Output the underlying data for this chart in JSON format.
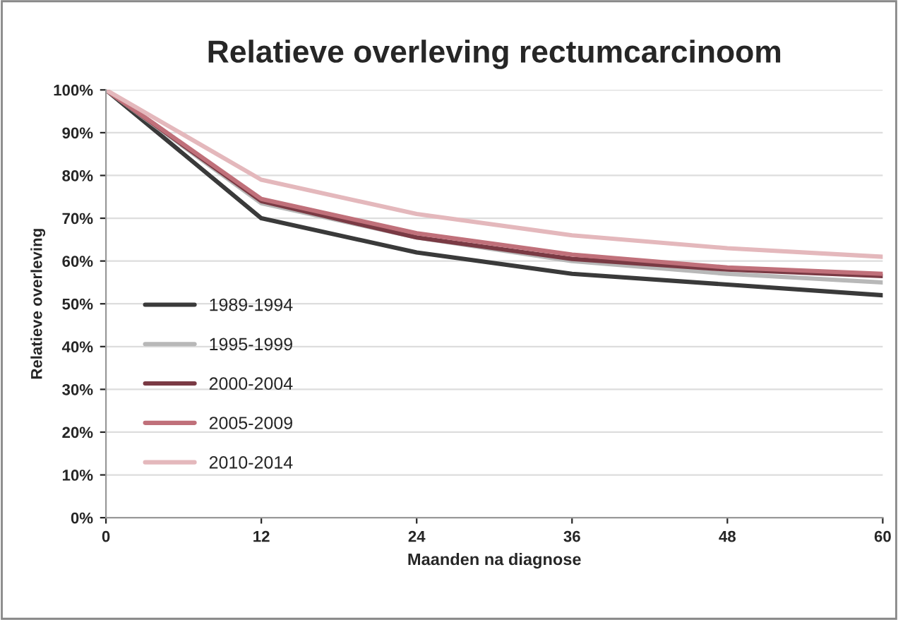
{
  "chart_data": {
    "type": "line",
    "title": "Relatieve overleving rectumcarcinoom",
    "xlabel": "Maanden na diagnose",
    "ylabel": "Relatieve overleving",
    "x": [
      0,
      12,
      24,
      36,
      48,
      60
    ],
    "series": [
      {
        "name": "1989-1994",
        "color": "#3a3a3a",
        "values": [
          100,
          70,
          62,
          57,
          54.5,
          52
        ]
      },
      {
        "name": "1995-1999",
        "color": "#b8b8b8",
        "values": [
          100,
          73.5,
          65.5,
          60,
          57,
          55
        ]
      },
      {
        "name": "2000-2004",
        "color": "#7a3a44",
        "values": [
          100,
          74,
          65.5,
          60.5,
          58,
          56.5
        ]
      },
      {
        "name": "2005-2009",
        "color": "#c0707a",
        "values": [
          100,
          74.5,
          66.5,
          61.5,
          58.5,
          57
        ]
      },
      {
        "name": "2010-2014",
        "color": "#e4b8bc",
        "values": [
          100,
          79,
          71,
          66,
          63,
          61
        ]
      }
    ],
    "xlim": [
      0,
      60
    ],
    "xticks": [
      0,
      12,
      24,
      36,
      48,
      60
    ],
    "ylim": [
      0,
      100
    ],
    "yticks": [
      {
        "value": 0,
        "label": "0%"
      },
      {
        "value": 10,
        "label": "10%"
      },
      {
        "value": 20,
        "label": "20%"
      },
      {
        "value": 30,
        "label": "30%"
      },
      {
        "value": 40,
        "label": "40%"
      },
      {
        "value": 50,
        "label": "50%"
      },
      {
        "value": 60,
        "label": "60%"
      },
      {
        "value": 70,
        "label": "70%"
      },
      {
        "value": 80,
        "label": "80%"
      },
      {
        "value": 90,
        "label": "90%"
      },
      {
        "value": 100,
        "label": "100%"
      }
    ],
    "grid": "y",
    "legend": "left",
    "marker": "none",
    "line_style": "solid"
  }
}
